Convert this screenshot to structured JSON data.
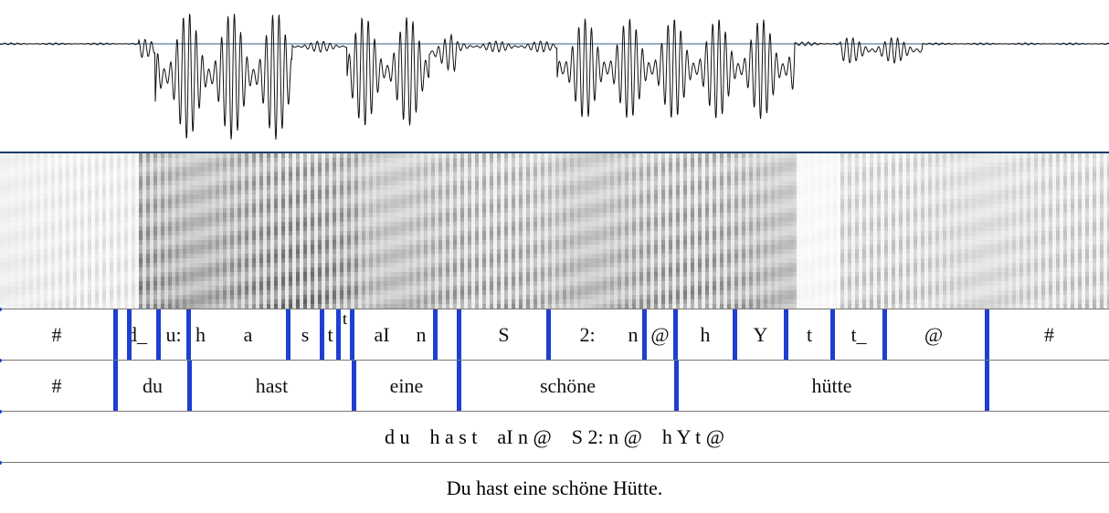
{
  "colors": {
    "boundary": "#1e3fd0",
    "wave_axis": "#2e5f8a",
    "wave": "#111111",
    "separator": "#1b3b6b"
  },
  "phones": [
    {
      "label": "#",
      "start": 0,
      "end": 124
    },
    {
      "label": "d_",
      "start": 129,
      "end": 171
    },
    {
      "label": "u:",
      "start": 176,
      "end": 204
    },
    {
      "label": "h",
      "start": 209,
      "end": 230
    },
    {
      "label": "a",
      "start": 230,
      "end": 313
    },
    {
      "label": "s",
      "start": 318,
      "end": 350
    },
    {
      "label": "t",
      "start": 355,
      "end": 368
    },
    {
      "label": "",
      "start": 373,
      "end": 383
    },
    {
      "label": "aI",
      "start": 388,
      "end": 448
    },
    {
      "label": "n",
      "start": 448,
      "end": 474
    },
    {
      "label": "",
      "start": 479,
      "end": 500
    },
    {
      "label": "S",
      "start": 505,
      "end": 598
    },
    {
      "label": "2:",
      "start": 603,
      "end": 683
    },
    {
      "label": "n",
      "start": 683,
      "end": 703
    },
    {
      "label": "@",
      "start": 708,
      "end": 737
    },
    {
      "label": "h",
      "start": 742,
      "end": 802
    },
    {
      "label": "Y",
      "start": 807,
      "end": 858
    },
    {
      "label": "t",
      "start": 863,
      "end": 909
    },
    {
      "label": "t_",
      "start": 914,
      "end": 966
    },
    {
      "label": "@",
      "start": 966,
      "end": 1078
    },
    {
      "label": "#",
      "start": 1083,
      "end": 1214
    }
  ],
  "phone_boundaries": [
    124,
    139,
    171,
    204,
    313,
    350,
    368,
    383,
    474,
    500,
    598,
    703,
    737,
    802,
    858,
    909,
    966,
    1078
  ],
  "phone_superscript": {
    "label": "t",
    "x": 380
  },
  "words": [
    {
      "label": "#",
      "start": 0,
      "end": 124
    },
    {
      "label": "du",
      "start": 129,
      "end": 205
    },
    {
      "label": "hast",
      "start": 210,
      "end": 385
    },
    {
      "label": "eine",
      "start": 390,
      "end": 500
    },
    {
      "label": "schöne",
      "start": 505,
      "end": 738
    },
    {
      "label": "hütte",
      "start": 743,
      "end": 1078
    },
    {
      "label": "",
      "start": 1083,
      "end": 1214
    }
  ],
  "word_boundaries": [
    124,
    205,
    385,
    500,
    738,
    1078
  ],
  "transcription": "d u    h a s t    aI n @    S 2: n @    h Y t @",
  "orthography": "Du hast eine schöne Hütte."
}
